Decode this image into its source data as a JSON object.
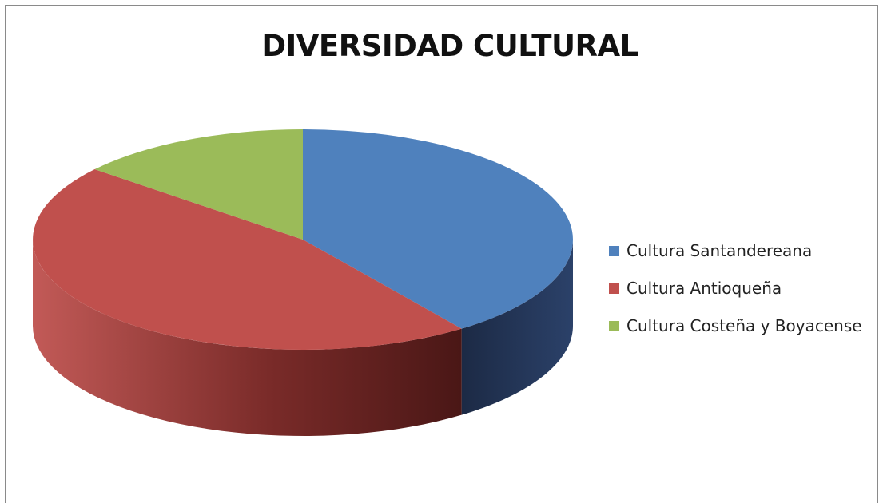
{
  "chart_data": {
    "type": "pie",
    "title": "DIVERSIDAD CULTURAL",
    "categories": [
      "Cultura Santandereana",
      "Cultura Antioqueña",
      "Cultura Costeña y Boyacense"
    ],
    "values": [
      40,
      46,
      14
    ],
    "colors": [
      "#4F81BD",
      "#C0504D",
      "#9BBB59"
    ],
    "style": "3d-pie",
    "legend_position": "right"
  }
}
